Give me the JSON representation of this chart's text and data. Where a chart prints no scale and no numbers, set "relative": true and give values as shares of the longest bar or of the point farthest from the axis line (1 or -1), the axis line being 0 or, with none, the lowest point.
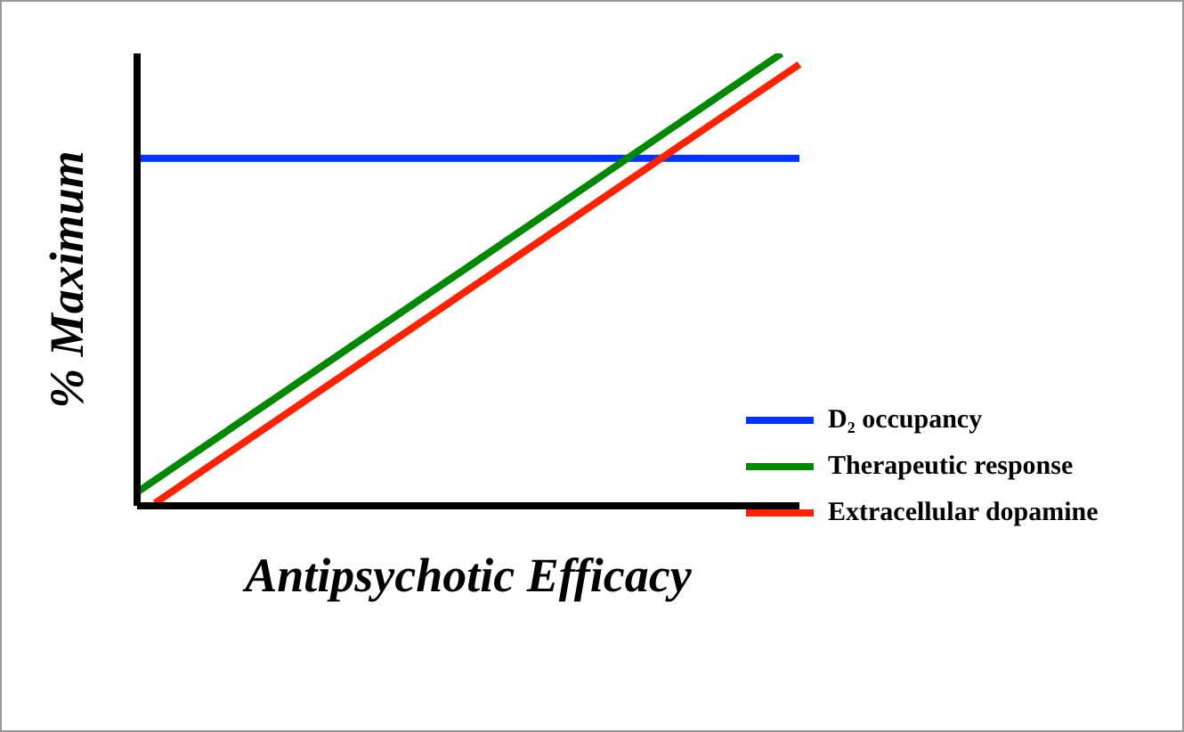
{
  "chart_data": {
    "type": "line",
    "relative": true,
    "xlabel": "Antipsychotic Efficacy",
    "ylabel": "% Maximum",
    "legend": "right",
    "marker": "none",
    "line_style": "solid",
    "grid": false,
    "categories": [
      null,
      null,
      null,
      null,
      null,
      null,
      null,
      null,
      null,
      null,
      null,
      null,
      null,
      null,
      null,
      null,
      null,
      null,
      null,
      null,
      null,
      null,
      null,
      null,
      null,
      null,
      null,
      null,
      null,
      null,
      null,
      null,
      null,
      null,
      null,
      null,
      null,
      null
    ],
    "series": [
      {
        "name": "D₂ occupancy",
        "color": "#0033ff",
        "values": [
          0.768,
          null,
          null,
          null,
          null,
          null,
          null,
          null,
          null,
          null,
          null,
          null,
          null,
          null,
          null,
          null,
          null,
          null,
          null,
          null,
          null,
          null,
          null,
          null,
          null,
          null,
          null,
          null,
          null,
          null,
          null,
          null,
          null,
          null,
          null,
          null,
          null,
          0.768
        ]
      },
      {
        "name": "Therapeutic response",
        "color": "#008800",
        "values": [
          0.03,
          null,
          null,
          null,
          null,
          null,
          null,
          null,
          null,
          null,
          null,
          null,
          null,
          null,
          null,
          null,
          null,
          null,
          null,
          null,
          null,
          null,
          null,
          null,
          null,
          null,
          null,
          null,
          null,
          null,
          null,
          null,
          null,
          null,
          null,
          null,
          1,
          null
        ]
      },
      {
        "name": "Extracellular dopamine",
        "color": "#ff2200",
        "values": [
          null,
          0.006,
          null,
          null,
          null,
          null,
          null,
          null,
          null,
          null,
          null,
          null,
          null,
          null,
          null,
          null,
          null,
          null,
          null,
          null,
          null,
          null,
          null,
          null,
          null,
          null,
          null,
          null,
          null,
          null,
          null,
          null,
          null,
          null,
          null,
          null,
          null,
          0.976
        ]
      }
    ]
  }
}
